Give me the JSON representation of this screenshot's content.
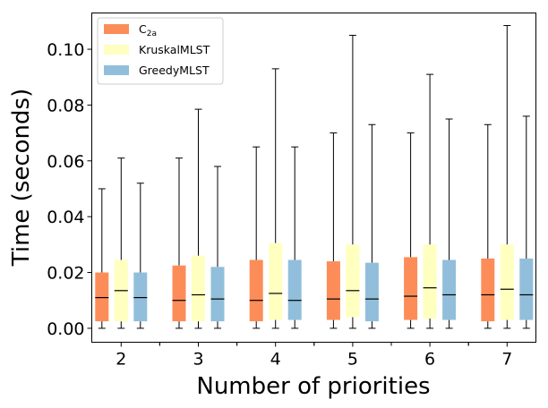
{
  "chart_data": {
    "type": "box",
    "xlabel": "Number of priorities",
    "ylabel": "Time (seconds)",
    "ylim": [
      -0.005,
      0.113
    ],
    "yticks": [
      0.0,
      0.02,
      0.04,
      0.06,
      0.08,
      0.1
    ],
    "ytick_labels": [
      "0.00",
      "0.02",
      "0.04",
      "0.06",
      "0.08",
      "0.10"
    ],
    "categories": [
      "2",
      "3",
      "4",
      "5",
      "6",
      "7"
    ],
    "legend_position": "top-left",
    "series": [
      {
        "name": "C2a",
        "label_base": "C",
        "label_sub": "2a",
        "color": "#fc8d59",
        "boxes": [
          {
            "whislo": 0.0,
            "q1": 0.0025,
            "med": 0.011,
            "q3": 0.02,
            "whishi": 0.05
          },
          {
            "whislo": 0.0,
            "q1": 0.0025,
            "med": 0.01,
            "q3": 0.0225,
            "whishi": 0.061
          },
          {
            "whislo": 0.0,
            "q1": 0.0025,
            "med": 0.01,
            "q3": 0.0245,
            "whishi": 0.065
          },
          {
            "whislo": 0.0,
            "q1": 0.003,
            "med": 0.0105,
            "q3": 0.024,
            "whishi": 0.07
          },
          {
            "whislo": 0.0,
            "q1": 0.003,
            "med": 0.0115,
            "q3": 0.0255,
            "whishi": 0.07
          },
          {
            "whislo": 0.0,
            "q1": 0.0025,
            "med": 0.012,
            "q3": 0.025,
            "whishi": 0.073
          }
        ]
      },
      {
        "name": "KruskalMLST",
        "color": "#ffffbf",
        "boxes": [
          {
            "whislo": 0.0,
            "q1": 0.0025,
            "med": 0.0135,
            "q3": 0.0245,
            "whishi": 0.061
          },
          {
            "whislo": 0.0,
            "q1": 0.0025,
            "med": 0.012,
            "q3": 0.026,
            "whishi": 0.0785
          },
          {
            "whislo": 0.0,
            "q1": 0.003,
            "med": 0.0125,
            "q3": 0.0305,
            "whishi": 0.093
          },
          {
            "whislo": 0.0,
            "q1": 0.004,
            "med": 0.0135,
            "q3": 0.03,
            "whishi": 0.105
          },
          {
            "whislo": 0.0,
            "q1": 0.0035,
            "med": 0.0145,
            "q3": 0.03,
            "whishi": 0.091
          },
          {
            "whislo": 0.0,
            "q1": 0.003,
            "med": 0.014,
            "q3": 0.03,
            "whishi": 0.1085
          }
        ]
      },
      {
        "name": "GreedyMLST",
        "color": "#91bfdb",
        "boxes": [
          {
            "whislo": 0.0,
            "q1": 0.0025,
            "med": 0.011,
            "q3": 0.02,
            "whishi": 0.052
          },
          {
            "whislo": 0.0,
            "q1": 0.0025,
            "med": 0.0105,
            "q3": 0.022,
            "whishi": 0.058
          },
          {
            "whislo": 0.0,
            "q1": 0.003,
            "med": 0.01,
            "q3": 0.0245,
            "whishi": 0.065
          },
          {
            "whislo": 0.0,
            "q1": 0.0025,
            "med": 0.0105,
            "q3": 0.0235,
            "whishi": 0.073
          },
          {
            "whislo": 0.0,
            "q1": 0.003,
            "med": 0.012,
            "q3": 0.0245,
            "whishi": 0.075
          },
          {
            "whislo": 0.0,
            "q1": 0.003,
            "med": 0.012,
            "q3": 0.025,
            "whishi": 0.076
          }
        ]
      }
    ]
  }
}
